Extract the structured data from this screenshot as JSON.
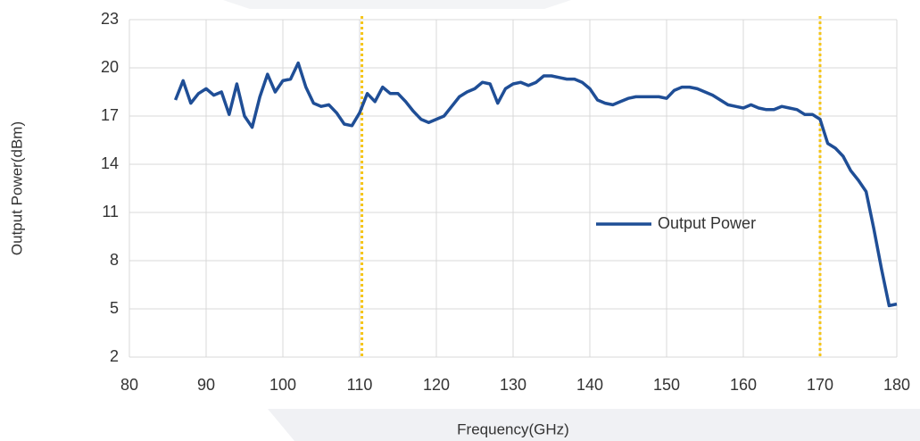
{
  "chart_data": {
    "type": "line",
    "x_label": "Frequency(GHz)",
    "y_label": "Output Power(dBm)",
    "xlim": [
      80,
      180
    ],
    "xticks": [
      80,
      90,
      100,
      110,
      120,
      130,
      140,
      150,
      160,
      170,
      180
    ],
    "ylim": [
      2,
      23
    ],
    "yticks": [
      2,
      5,
      8,
      11,
      14,
      17,
      20,
      23
    ],
    "grid": true,
    "legend": "center",
    "vlines": {
      "color": "#f5c518",
      "x": [
        110.3,
        170
      ]
    },
    "x": [
      86,
      87,
      88,
      89,
      90,
      91,
      92,
      93,
      94,
      95,
      96,
      97,
      98,
      99,
      100,
      101,
      102,
      103,
      104,
      105,
      106,
      107,
      108,
      109,
      110,
      111,
      112,
      113,
      114,
      115,
      116,
      117,
      118,
      119,
      120,
      121,
      122,
      123,
      124,
      125,
      126,
      127,
      128,
      129,
      130,
      131,
      132,
      133,
      134,
      135,
      136,
      137,
      138,
      139,
      140,
      141,
      142,
      143,
      144,
      145,
      146,
      147,
      148,
      149,
      150,
      151,
      152,
      153,
      154,
      155,
      156,
      157,
      158,
      159,
      160,
      161,
      162,
      163,
      164,
      165,
      166,
      167,
      168,
      169,
      170,
      171,
      172,
      173,
      174,
      175,
      176,
      177,
      178,
      179,
      180
    ],
    "series": [
      {
        "name": "Output Power",
        "color": "#1f4e96",
        "values": [
          18.0,
          19.2,
          17.8,
          18.4,
          18.7,
          18.3,
          18.5,
          17.1,
          19.0,
          17.0,
          16.3,
          18.2,
          19.6,
          18.5,
          19.2,
          19.3,
          20.3,
          18.8,
          17.8,
          17.6,
          17.7,
          17.2,
          16.5,
          16.4,
          17.2,
          18.4,
          17.9,
          18.8,
          18.4,
          18.4,
          17.9,
          17.3,
          16.8,
          16.6,
          16.8,
          17.0,
          17.6,
          18.2,
          18.5,
          18.7,
          19.1,
          19.0,
          17.8,
          18.7,
          19.0,
          19.1,
          18.9,
          19.1,
          19.5,
          19.5,
          19.4,
          19.3,
          19.3,
          19.1,
          18.7,
          18.0,
          17.8,
          17.7,
          17.9,
          18.1,
          18.2,
          18.2,
          18.2,
          18.2,
          18.1,
          18.6,
          18.8,
          18.8,
          18.7,
          18.5,
          18.3,
          18.0,
          17.7,
          17.6,
          17.5,
          17.7,
          17.5,
          17.4,
          17.4,
          17.6,
          17.5,
          17.4,
          17.1,
          17.1,
          16.8,
          15.3,
          15.0,
          14.5,
          13.6,
          13.0,
          12.3,
          10.0,
          7.5,
          5.2,
          5.3
        ]
      }
    ]
  }
}
